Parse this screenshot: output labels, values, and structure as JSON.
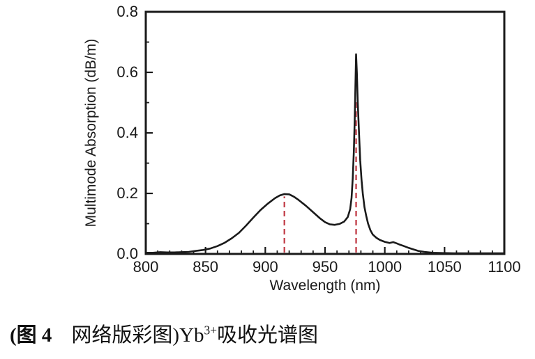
{
  "figure": {
    "caption": {
      "bold_prefix": "(图 4",
      "body": "网络版彩图)Yb",
      "superscript": "3+",
      "suffix": "吸收光谱图"
    }
  },
  "chart_data": {
    "type": "line",
    "title": "",
    "xlabel": "Wavelength (nm)",
    "ylabel": "Multimode Absorption (dB/m)",
    "xlim": [
      800,
      1100
    ],
    "ylim": [
      0.0,
      0.8
    ],
    "grid": false,
    "legend_position": "none",
    "x_major_ticks": [
      800,
      850,
      900,
      950,
      1000,
      1050,
      1100
    ],
    "x_minor_step_nm": 10,
    "y_major_ticks": [
      {
        "value": 0.0,
        "label": "0.0"
      },
      {
        "value": 0.2,
        "label": "0.2"
      },
      {
        "value": 0.4,
        "label": "0.4"
      },
      {
        "value": 0.6,
        "label": "0.6"
      },
      {
        "value": 0.8,
        "label": "0.8"
      }
    ],
    "y_minor_step": 0.1,
    "line_color": "#1a1a1a",
    "marker_line_color": "#c4454f",
    "peaks": [
      {
        "wavelength_nm": 916,
        "absorption_dB_per_m": 0.198,
        "type": "broad"
      },
      {
        "wavelength_nm": 976,
        "absorption_dB_per_m": 0.66,
        "type": "sharp"
      }
    ],
    "peak_markers": [
      {
        "x": 916,
        "y_top": 0.19
      },
      {
        "x": 976,
        "y_top": 0.51
      }
    ],
    "series": [
      {
        "name": "Yb3+ multimode absorption",
        "points": [
          [
            800,
            0.004
          ],
          [
            806,
            0.004
          ],
          [
            812,
            0.006
          ],
          [
            818,
            0.005
          ],
          [
            824,
            0.005
          ],
          [
            830,
            0.006
          ],
          [
            836,
            0.007
          ],
          [
            842,
            0.01
          ],
          [
            848,
            0.013
          ],
          [
            854,
            0.018
          ],
          [
            860,
            0.026
          ],
          [
            866,
            0.037
          ],
          [
            872,
            0.052
          ],
          [
            878,
            0.07
          ],
          [
            884,
            0.094
          ],
          [
            890,
            0.12
          ],
          [
            896,
            0.145
          ],
          [
            902,
            0.166
          ],
          [
            908,
            0.184
          ],
          [
            912,
            0.193
          ],
          [
            916,
            0.198
          ],
          [
            920,
            0.197
          ],
          [
            924,
            0.189
          ],
          [
            928,
            0.178
          ],
          [
            934,
            0.159
          ],
          [
            940,
            0.138
          ],
          [
            946,
            0.117
          ],
          [
            950,
            0.105
          ],
          [
            954,
            0.098
          ],
          [
            958,
            0.096
          ],
          [
            962,
            0.099
          ],
          [
            966,
            0.107
          ],
          [
            969,
            0.122
          ],
          [
            971,
            0.148
          ],
          [
            972.2,
            0.185
          ],
          [
            973.2,
            0.25
          ],
          [
            974.1,
            0.34
          ],
          [
            974.8,
            0.44
          ],
          [
            975.4,
            0.55
          ],
          [
            976,
            0.66
          ],
          [
            976.6,
            0.6
          ],
          [
            977.4,
            0.5
          ],
          [
            978.4,
            0.4
          ],
          [
            979.4,
            0.31
          ],
          [
            980.5,
            0.245
          ],
          [
            981.6,
            0.2
          ],
          [
            983,
            0.155
          ],
          [
            984.5,
            0.125
          ],
          [
            986,
            0.1
          ],
          [
            988,
            0.078
          ],
          [
            990,
            0.064
          ],
          [
            993,
            0.053
          ],
          [
            996,
            0.046
          ],
          [
            1000,
            0.04
          ],
          [
            1004,
            0.036
          ],
          [
            1007,
            0.039
          ],
          [
            1010,
            0.035
          ],
          [
            1013,
            0.03
          ],
          [
            1016,
            0.026
          ],
          [
            1020,
            0.02
          ],
          [
            1024,
            0.015
          ],
          [
            1028,
            0.01
          ],
          [
            1033,
            0.007
          ],
          [
            1040,
            0.004
          ],
          [
            1048,
            0.003
          ],
          [
            1058,
            0.002
          ],
          [
            1070,
            0.002
          ],
          [
            1085,
            0.002
          ],
          [
            1100,
            0.002
          ]
        ]
      }
    ]
  }
}
